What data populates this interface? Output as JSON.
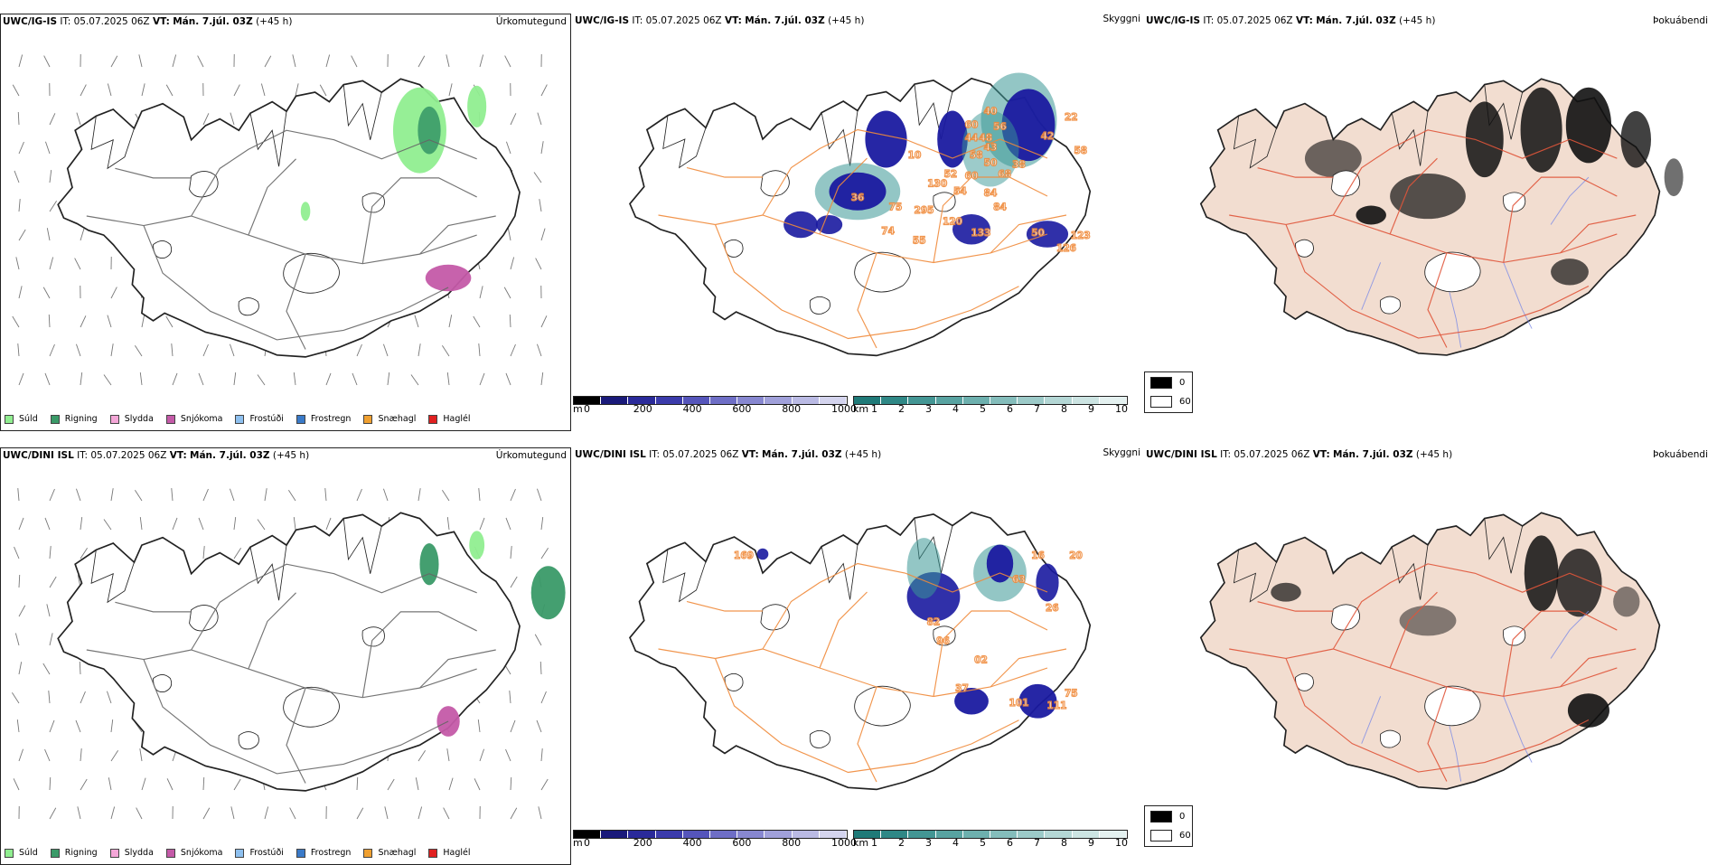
{
  "rows": [
    {
      "model": "UWC/IG-IS",
      "it_label": "IT:",
      "it_value": "05.07.2025 06Z",
      "vt_label": "VT:",
      "vt_value": "Mán. 7.júl. 03Z",
      "lead": "(+45 h)",
      "panel_titles": [
        "Úrkomutegund",
        "Skyggni",
        "Þokuábendi"
      ],
      "visibility_labels": [
        "40",
        "60",
        "56",
        "44",
        "48",
        "42",
        "22",
        "58",
        "10",
        "58",
        "43",
        "50",
        "52",
        "54",
        "130",
        "60",
        "36",
        "75",
        "295",
        "120",
        "84",
        "68",
        "38",
        "133",
        "50",
        "123",
        "126",
        "74",
        "55",
        "84"
      ]
    },
    {
      "model": "UWC/DINI ISL",
      "it_label": "IT:",
      "it_value": "05.07.2025 06Z",
      "vt_label": "VT:",
      "vt_value": "Mán. 7.júl. 03Z",
      "lead": "(+45 h)",
      "panel_titles": [
        "Úrkomutegund",
        "Skyggni",
        "Þokuábendi"
      ],
      "visibility_labels": [
        "169",
        "63",
        "20",
        "26",
        "96",
        "82",
        "37",
        "101",
        "111",
        "75",
        "02",
        "16"
      ]
    }
  ],
  "precip_legend": [
    {
      "label": "Súld",
      "color": "#90ee90"
    },
    {
      "label": "Rigning",
      "color": "#3a9a68"
    },
    {
      "label": "Slydda",
      "color": "#f4a6d7"
    },
    {
      "label": "Snjókoma",
      "color": "#c45aa8"
    },
    {
      "label": "Frostúði",
      "color": "#8ec0ef"
    },
    {
      "label": "Frostregn",
      "color": "#3a7ac8"
    },
    {
      "label": "Snæhagl",
      "color": "#f0a030"
    },
    {
      "label": "Haglél",
      "color": "#e02020"
    }
  ],
  "ceiling_bar": {
    "unit": "m",
    "ticks": [
      "0",
      "200",
      "400",
      "600",
      "800",
      "1000"
    ],
    "colors": [
      "#000000",
      "#1a1a7a",
      "#2a2a9a",
      "#3b3bab",
      "#5555bb",
      "#6e6ec6",
      "#8787d0",
      "#a0a0da",
      "#babae4",
      "#d4d4ee"
    ]
  },
  "visibility_bar": {
    "unit": "km",
    "ticks": [
      "1",
      "2",
      "3",
      "4",
      "5",
      "6",
      "7",
      "8",
      "9",
      "10"
    ],
    "colors": [
      "#1f7a78",
      "#2f8886",
      "#439694",
      "#58a3a1",
      "#6db0ae",
      "#84bdbb",
      "#9ccac8",
      "#b4d7d5",
      "#cce4e2",
      "#e4f1f0"
    ]
  },
  "fog_legend": [
    {
      "label": "0",
      "color": "#000000"
    },
    {
      "label": "60",
      "color": "#ffffff"
    }
  ],
  "colors": {
    "road": "#f08a3a",
    "road_red": "#e0553a",
    "land_fog": "#f2ddd0",
    "coast": "#222222",
    "river": "#7a8ae6",
    "rain": "#3a9a68",
    "drizzle": "#90ee90",
    "snow": "#c45aa8",
    "low_ceiling": "#1a1aa0",
    "vis_teal": "#3a9896"
  }
}
